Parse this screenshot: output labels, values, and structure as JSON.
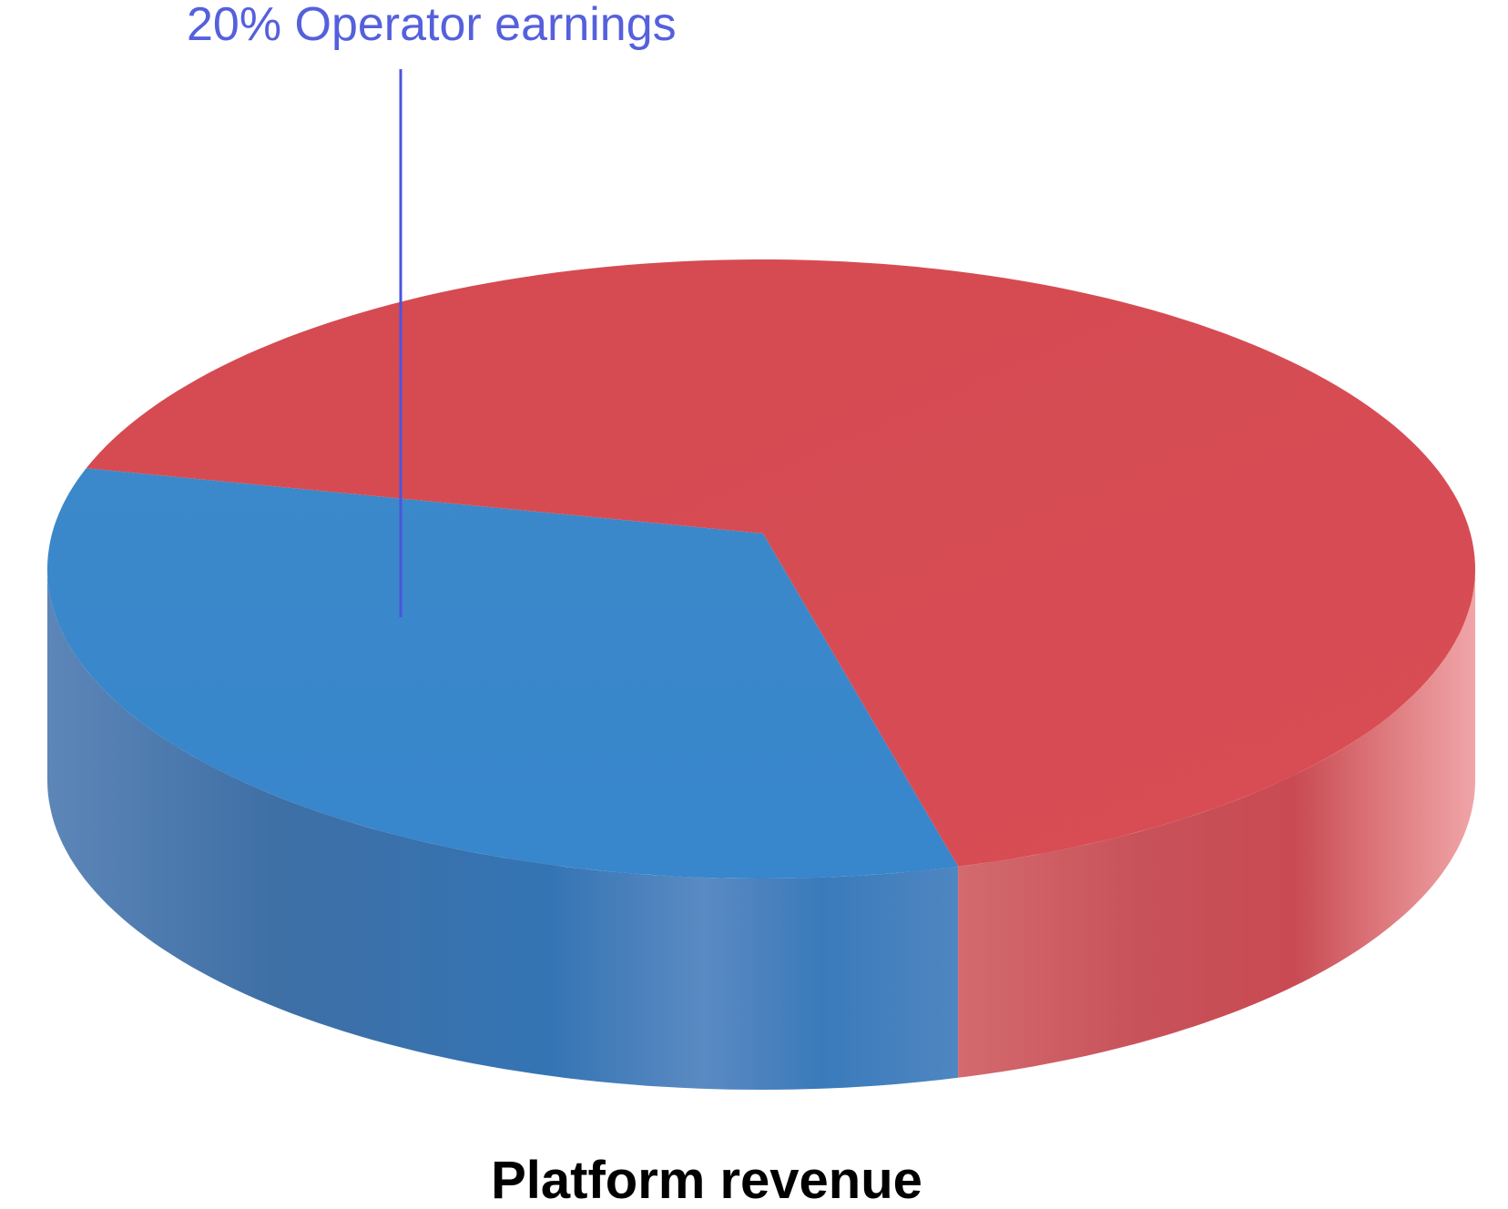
{
  "chart_data": {
    "type": "pie",
    "style": "3d",
    "title": "Platform revenue",
    "slices": [
      {
        "label": "Operator earnings",
        "value": 20,
        "display": "20%",
        "color": "#3a86c8",
        "side_color": "#3a73ad"
      },
      {
        "label": "",
        "value": 80,
        "display": "",
        "color": "#d64a52",
        "side_color": "#c94f55"
      }
    ],
    "callout": {
      "text": "20% Operator earnings",
      "color": "#5560dd"
    },
    "title_color": "#000000"
  }
}
